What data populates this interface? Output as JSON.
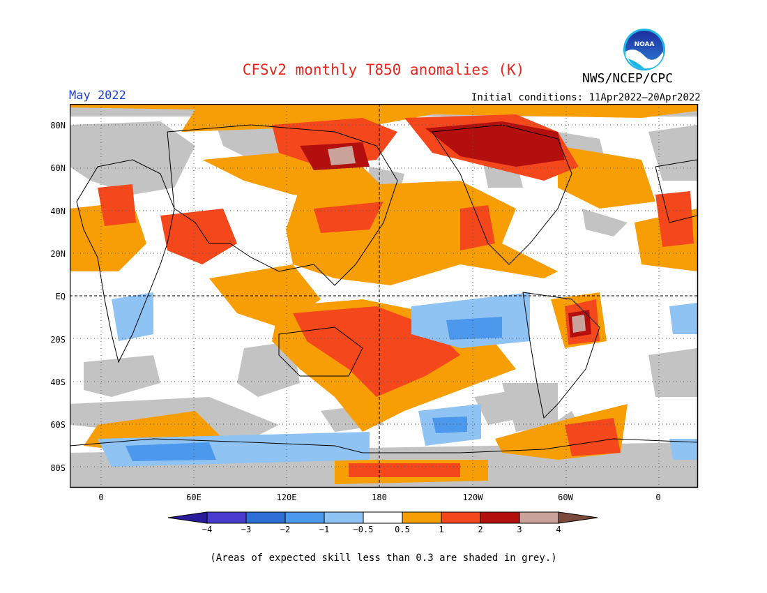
{
  "title": "CFSv2 monthly T850 anomalies (K)",
  "agency": "NWS/NCEP/CPC",
  "logo_text": "NOAA",
  "period": "May 2022",
  "initial_conditions": "Initial conditions: 11Apr2022–20Apr2022",
  "note": "(Areas of expected skill less than 0.3 are shaded in grey.)",
  "lat_labels": [
    "80N",
    "60N",
    "40N",
    "20N",
    "EQ",
    "20S",
    "40S",
    "60S",
    "80S"
  ],
  "lon_labels": [
    "0",
    "60E",
    "120E",
    "180",
    "120W",
    "60W",
    "0"
  ],
  "colorbar": {
    "labels": [
      "−4",
      "−3",
      "−2",
      "−1",
      "−0.5",
      "0.5",
      "1",
      "2",
      "3",
      "4"
    ],
    "colors": [
      "#2a1a9c",
      "#4a3ccf",
      "#2d6fd6",
      "#4c98ec",
      "#8ec3f3",
      "#ffffff",
      "#f89e05",
      "#f5471c",
      "#b30f0f",
      "#c9a39a",
      "#7c4a3c"
    ]
  },
  "colors": {
    "grey_skill": "#c3c3c3",
    "warm_1": "#f89e05",
    "warm_2": "#f5471c",
    "warm_3": "#b30f0f",
    "warm_4": "#c9a39a",
    "cool_1": "#8ec3f3",
    "cool_2": "#4c98ec",
    "cool_3": "#2d6fd6"
  }
}
